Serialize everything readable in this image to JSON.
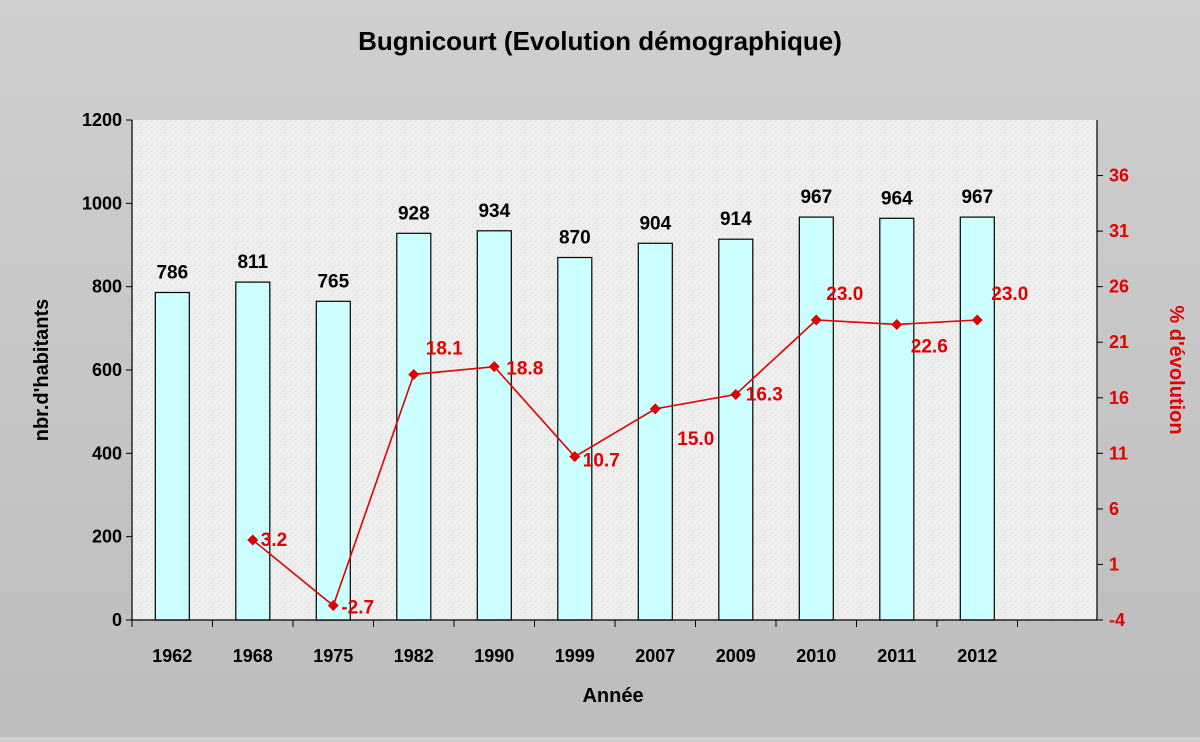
{
  "chart_data": {
    "type": "bar",
    "title": "Bugnicourt (Evolution démographique)",
    "xlabel": "Année",
    "ylabel": "nbr.d'habitants",
    "y2label": "% d'évolution",
    "categories": [
      "1962",
      "1968",
      "1975",
      "1982",
      "1990",
      "1999",
      "2007",
      "2009",
      "2010",
      "2011",
      "2012"
    ],
    "ylim": [
      0,
      1200
    ],
    "yticks": [
      0,
      200,
      400,
      600,
      800,
      1000,
      1200
    ],
    "y2lim": [
      -4,
      41
    ],
    "y2ticks": [
      -4,
      1,
      6,
      11,
      16,
      21,
      26,
      31,
      36
    ],
    "grid": false,
    "legend": "none",
    "series": [
      {
        "type": "bar",
        "axis": "left",
        "values": [
          786,
          811,
          765,
          928,
          934,
          870,
          904,
          914,
          967,
          964,
          967
        ],
        "labels": [
          "786",
          "811",
          "765",
          "928",
          "934",
          "870",
          "904",
          "914",
          "967",
          "964",
          "967"
        ],
        "color": "#ccffff"
      },
      {
        "type": "line",
        "axis": "right",
        "values": [
          null,
          3.2,
          -2.7,
          18.1,
          18.8,
          10.7,
          15.0,
          16.3,
          23.0,
          22.6,
          23.0
        ],
        "labels": [
          "",
          "3.2",
          "-2.7",
          "18.1",
          "18.8",
          "10.7",
          "15.0",
          "16.3",
          "23.0",
          "22.6",
          "23.0"
        ],
        "color": "#e00000"
      }
    ]
  },
  "colors": {
    "background": "#c4c4c4",
    "plot_area": "#ededed",
    "bar_fill": "#ccffff",
    "bar_stroke": "#000000",
    "line": "#e00000"
  }
}
